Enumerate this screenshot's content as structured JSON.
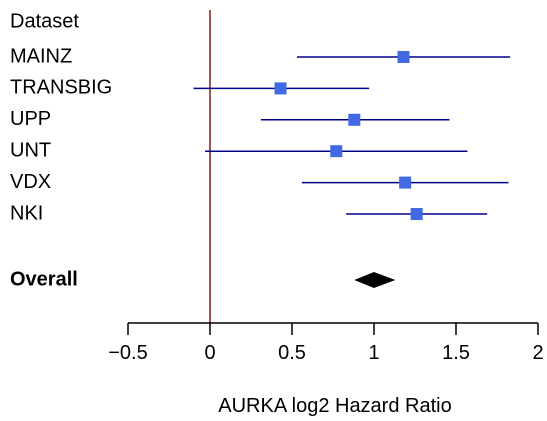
{
  "chart_data": {
    "type": "forest",
    "header": "Dataset",
    "studies": [
      {
        "name": "MAINZ",
        "estimate": 1.18,
        "lower": 0.53,
        "upper": 1.83
      },
      {
        "name": "TRANSBIG",
        "estimate": 0.43,
        "lower": -0.1,
        "upper": 0.97
      },
      {
        "name": "UPP",
        "estimate": 0.88,
        "lower": 0.31,
        "upper": 1.46
      },
      {
        "name": "UNT",
        "estimate": 0.77,
        "lower": -0.03,
        "upper": 1.57
      },
      {
        "name": "VDX",
        "estimate": 1.19,
        "lower": 0.56,
        "upper": 1.82
      },
      {
        "name": "NKI",
        "estimate": 1.26,
        "lower": 0.83,
        "upper": 1.69
      }
    ],
    "overall": {
      "name": "Overall",
      "estimate": 1.0,
      "lower": 0.88,
      "upper": 1.13
    },
    "reference_line": 0,
    "xlabel": "AURKA log2 Hazard Ratio",
    "xlim": [
      -0.5,
      2
    ],
    "xticks": [
      {
        "value": -0.5,
        "label": "−0.5"
      },
      {
        "value": 0,
        "label": "0"
      },
      {
        "value": 0.5,
        "label": "0.5"
      },
      {
        "value": 1,
        "label": "1"
      },
      {
        "value": 1.5,
        "label": "1.5"
      },
      {
        "value": 2,
        "label": "2"
      }
    ],
    "colors": {
      "point": "#4169E1",
      "ci_line": "#00008B",
      "reference_line": "#8B1A1A",
      "overall": "#000000",
      "axis": "#000000"
    }
  }
}
